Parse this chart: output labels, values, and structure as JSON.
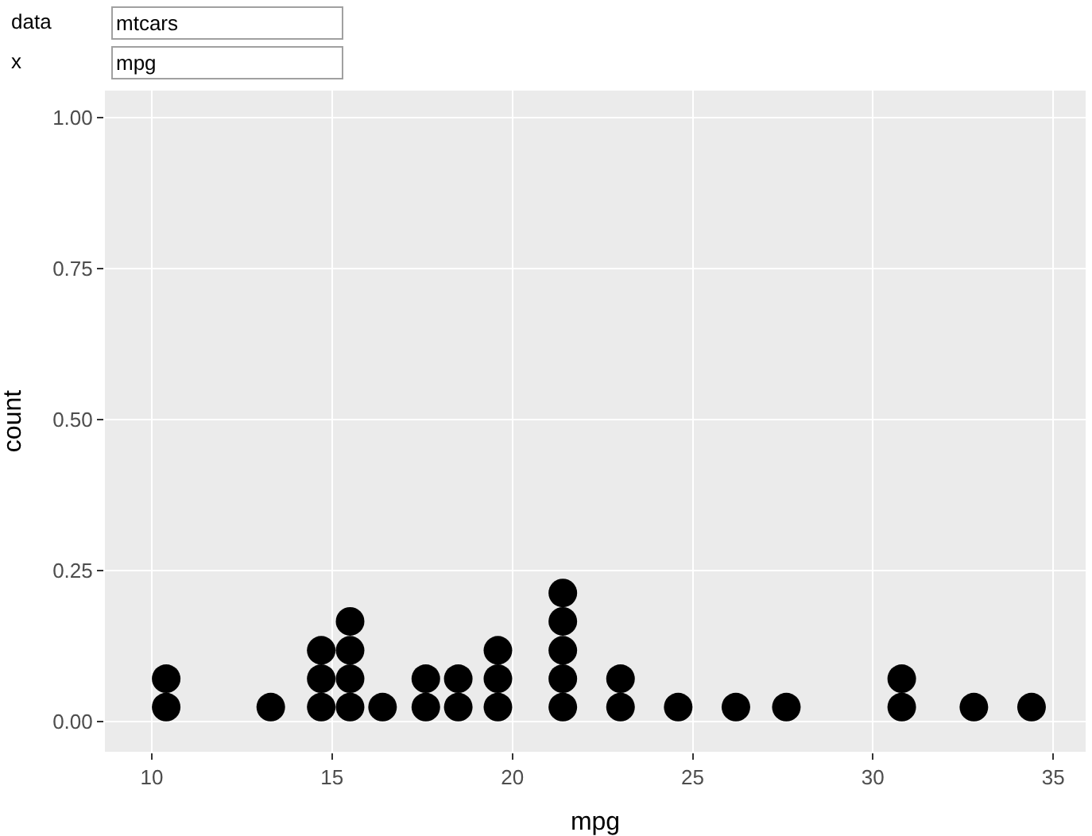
{
  "chart_data": {
    "type": "scatter",
    "xlabel": "mpg",
    "ylabel": "count",
    "annotations": [
      "data",
      "mtcars",
      "x",
      "mpg"
    ],
    "series": [
      {
        "color": "#000000",
        "x": [
          10.4,
          10.4,
          13.3,
          14.7,
          14.7,
          14.7,
          15.5,
          15.5,
          15.5,
          15.5,
          16.4,
          17.6,
          17.6,
          18.5,
          18.5,
          19.6,
          19.6,
          19.6,
          21.4,
          21.4,
          21.4,
          21.4,
          21.4,
          23.0,
          23.0,
          24.6,
          26.2,
          27.6,
          30.8,
          30.8,
          32.8,
          34.4
        ],
        "values": [
          0.024,
          0.071,
          0.024,
          0.024,
          0.071,
          0.118,
          0.024,
          0.071,
          0.118,
          0.166,
          0.024,
          0.024,
          0.071,
          0.024,
          0.071,
          0.024,
          0.071,
          0.118,
          0.024,
          0.071,
          0.118,
          0.166,
          0.213,
          0.024,
          0.071,
          0.024,
          0.024,
          0.024,
          0.024,
          0.071,
          0.024,
          0.024
        ]
      }
    ],
    "xlim": [
      8.7,
      35.9
    ],
    "ylim": [
      -0.05,
      1.045
    ],
    "xticks": [
      10,
      15,
      20,
      25,
      30,
      35
    ],
    "yticks": [
      {
        "value": 0,
        "label": "0.00"
      },
      {
        "value": 0.25,
        "label": "0.25"
      },
      {
        "value": 0.5,
        "label": "0.50"
      },
      {
        "value": 0.75,
        "label": "0.75"
      },
      {
        "value": 1,
        "label": "1.00"
      }
    ],
    "grid": true,
    "marker": "circle"
  }
}
